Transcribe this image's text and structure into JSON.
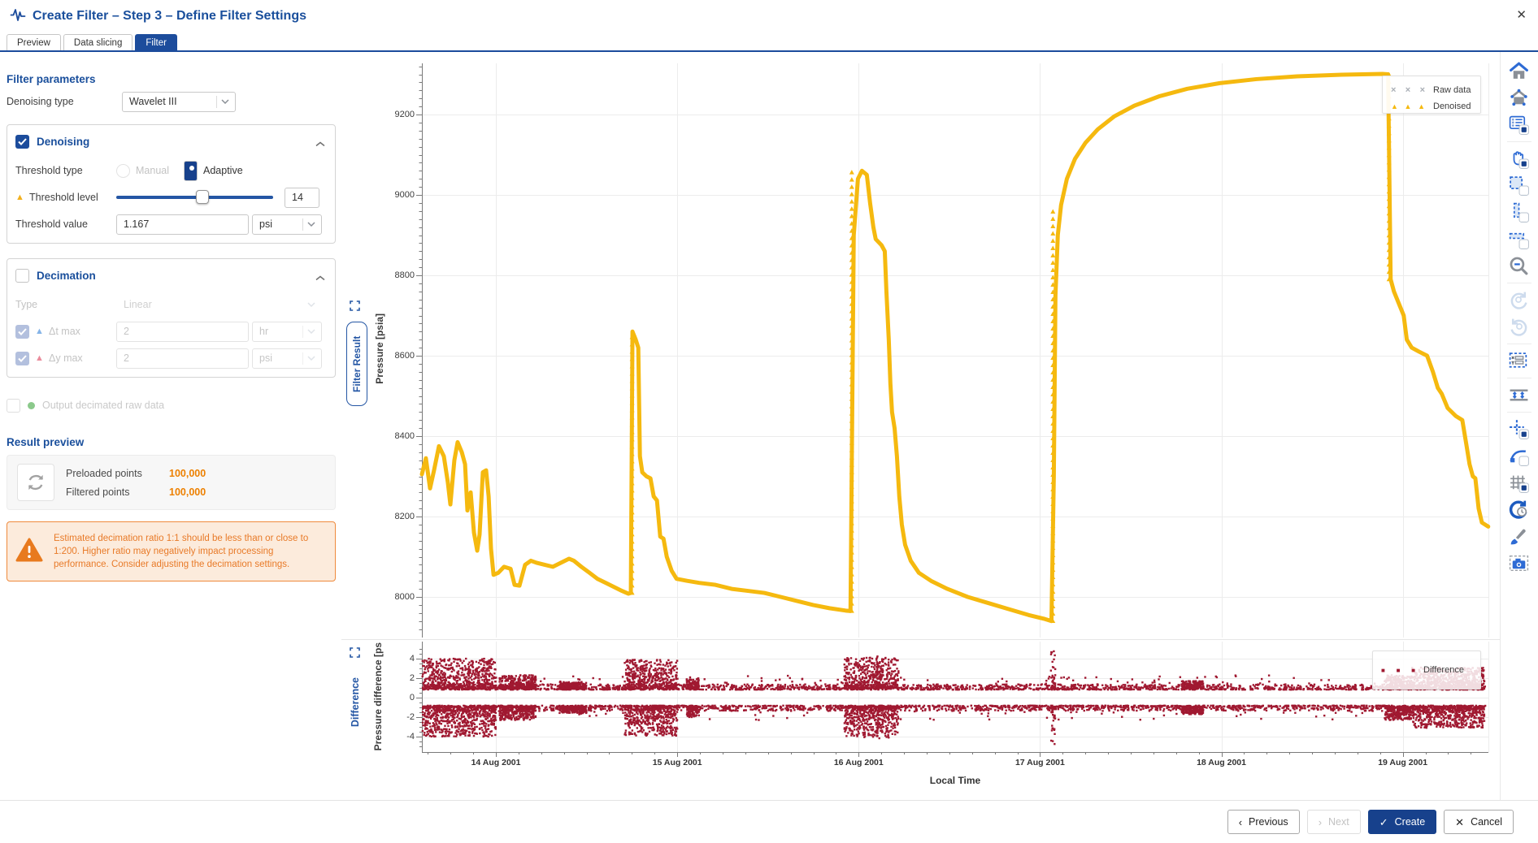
{
  "header": {
    "title": "Create Filter – Step 3 – Define Filter Settings",
    "close_glyph": "✕"
  },
  "tabs": [
    {
      "label": "Preview",
      "active": false
    },
    {
      "label": "Data slicing",
      "active": false
    },
    {
      "label": "Filter",
      "active": true
    }
  ],
  "filter_panel": {
    "heading": "Filter parameters",
    "denoising_type": {
      "label": "Denoising type",
      "value": "Wavelet III"
    },
    "denoising": {
      "title": "Denoising",
      "checked": true,
      "threshold_type": {
        "label": "Threshold type",
        "options": [
          {
            "label": "Manual",
            "selected": false,
            "disabled": true
          },
          {
            "label": "Adaptive",
            "selected": true,
            "disabled": false
          }
        ]
      },
      "threshold_level": {
        "label": "Threshold level",
        "value": "14",
        "slider_pos": 0.55,
        "marker_glyph": "▲",
        "marker_color": "#f2b01e"
      },
      "threshold_value": {
        "label": "Threshold value",
        "value": "1.167",
        "unit": "psi"
      }
    },
    "decimation": {
      "title": "Decimation",
      "checked": false,
      "type": {
        "label": "Type",
        "value": "Linear"
      },
      "dt_max": {
        "label": "Δt max",
        "value": "2",
        "unit": "hr",
        "checked": true,
        "marker_glyph": "▲",
        "marker_color": "#85b4e8"
      },
      "dy_max": {
        "label": "Δy max",
        "value": "2",
        "unit": "psi",
        "checked": true,
        "marker_glyph": "▲",
        "marker_color": "#ea8c9c"
      }
    },
    "output_decimated": {
      "label": "Output decimated raw data",
      "checked": false,
      "dot_color": "#8bc98b"
    },
    "result_preview": {
      "heading": "Result preview",
      "rows": [
        {
          "label": "Preloaded points",
          "value": "100,000"
        },
        {
          "label": "Filtered points",
          "value": "100,000"
        }
      ],
      "value_color": "#ed8000"
    },
    "warning": {
      "text": "Estimated decimation ratio 1:1 should be less than or close to 1:200. Higher ratio may negatively impact processing performance. Consider adjusting the decimation settings."
    }
  },
  "chart_data": {
    "type": "line",
    "x": {
      "label": "Local Time",
      "domain": [
        0.092,
        5.972
      ],
      "gridlines": [
        0.5,
        1.5,
        2.5,
        3.5,
        4.5,
        5.5
      ],
      "ticks": [
        {
          "pos": 0.5,
          "label": "14 Aug 2001"
        },
        {
          "pos": 1.5,
          "label": "15 Aug 2001"
        },
        {
          "pos": 2.5,
          "label": "16 Aug 2001"
        },
        {
          "pos": 3.5,
          "label": "17 Aug 2001"
        },
        {
          "pos": 4.5,
          "label": "18 Aug 2001"
        },
        {
          "pos": 5.5,
          "label": "19 Aug 2001"
        }
      ]
    },
    "panels": [
      {
        "id": "filter_result",
        "badge": "Filter Result",
        "ylabel": "Pressure [psia]",
        "ylim": [
          7895,
          9325
        ],
        "yticks": [
          9200,
          9000,
          8800,
          8600,
          8400,
          8200,
          8000
        ],
        "legend": [
          {
            "label": "Raw data",
            "marker_glyph": "×",
            "color": "#a9aeb5"
          },
          {
            "label": "Denoised",
            "marker_glyph": "▲",
            "color": "#f5b90f"
          }
        ],
        "series": [
          {
            "name": "Denoised",
            "color": "#f5b90f",
            "points": [
              [
                0.092,
                8305
              ],
              [
                0.114,
                8345
              ],
              [
                0.137,
                8270
              ],
              [
                0.159,
                8315
              ],
              [
                0.186,
                8375
              ],
              [
                0.213,
                8350
              ],
              [
                0.235,
                8285
              ],
              [
                0.249,
                8230
              ],
              [
                0.271,
                8340
              ],
              [
                0.289,
                8385
              ],
              [
                0.312,
                8360
              ],
              [
                0.33,
                8330
              ],
              [
                0.343,
                8215
              ],
              [
                0.361,
                8260
              ],
              [
                0.379,
                8160
              ],
              [
                0.397,
                8115
              ],
              [
                0.41,
                8155
              ],
              [
                0.428,
                8310
              ],
              [
                0.446,
                8315
              ],
              [
                0.46,
                8250
              ],
              [
                0.473,
                8120
              ],
              [
                0.487,
                8055
              ],
              [
                0.513,
                8060
              ],
              [
                0.545,
                8075
              ],
              [
                0.581,
                8070
              ],
              [
                0.603,
                8030
              ],
              [
                0.63,
                8028
              ],
              [
                0.661,
                8080
              ],
              [
                0.693,
                8090
              ],
              [
                0.724,
                8085
              ],
              [
                0.769,
                8080
              ],
              [
                0.814,
                8075
              ],
              [
                0.859,
                8085
              ],
              [
                0.903,
                8095
              ],
              [
                0.93,
                8090
              ],
              [
                0.971,
                8075
              ],
              [
                1.016,
                8060
              ],
              [
                1.06,
                8045
              ],
              [
                1.105,
                8035
              ],
              [
                1.15,
                8025
              ],
              [
                1.195,
                8015
              ],
              [
                1.231,
                8008
              ],
              [
                1.244,
                8010
              ],
              [
                1.253,
                8660
              ],
              [
                1.271,
                8640
              ],
              [
                1.285,
                8620
              ],
              [
                1.294,
                8350
              ],
              [
                1.307,
                8310
              ],
              [
                1.33,
                8300
              ],
              [
                1.352,
                8295
              ],
              [
                1.37,
                8250
              ],
              [
                1.388,
                8240
              ],
              [
                1.406,
                8150
              ],
              [
                1.424,
                8145
              ],
              [
                1.442,
                8100
              ],
              [
                1.469,
                8065
              ],
              [
                1.496,
                8045
              ],
              [
                1.554,
                8040
              ],
              [
                1.621,
                8035
              ],
              [
                1.711,
                8030
              ],
              [
                1.8,
                8020
              ],
              [
                1.89,
                8015
              ],
              [
                1.98,
                8010
              ],
              [
                2.07,
                8000
              ],
              [
                2.159,
                7990
              ],
              [
                2.249,
                7980
              ],
              [
                2.339,
                7972
              ],
              [
                2.428,
                7966
              ],
              [
                2.455,
                7965
              ],
              [
                2.473,
                8900
              ],
              [
                2.496,
                9040
              ],
              [
                2.518,
                9060
              ],
              [
                2.545,
                9050
              ],
              [
                2.563,
                8980
              ],
              [
                2.581,
                8920
              ],
              [
                2.594,
                8890
              ],
              [
                2.626,
                8875
              ],
              [
                2.644,
                8860
              ],
              [
                2.653,
                8760
              ],
              [
                2.666,
                8640
              ],
              [
                2.675,
                8530
              ],
              [
                2.684,
                8460
              ],
              [
                2.698,
                8420
              ],
              [
                2.711,
                8350
              ],
              [
                2.724,
                8250
              ],
              [
                2.738,
                8180
              ],
              [
                2.756,
                8130
              ],
              [
                2.787,
                8090
              ],
              [
                2.832,
                8060
              ],
              [
                2.899,
                8040
              ],
              [
                2.989,
                8020
              ],
              [
                3.101,
                8000
              ],
              [
                3.213,
                7985
              ],
              [
                3.325,
                7970
              ],
              [
                3.437,
                7955
              ],
              [
                3.527,
                7945
              ],
              [
                3.563,
                7940
              ],
              [
                3.576,
                8300
              ],
              [
                3.585,
                8750
              ],
              [
                3.598,
                8900
              ],
              [
                3.616,
                8975
              ],
              [
                3.648,
                9040
              ],
              [
                3.693,
                9090
              ],
              [
                3.751,
                9130
              ],
              [
                3.818,
                9163
              ],
              [
                3.908,
                9195
              ],
              [
                4.02,
                9222
              ],
              [
                4.155,
                9245
              ],
              [
                4.312,
                9264
              ],
              [
                4.491,
                9278
              ],
              [
                4.693,
                9288
              ],
              [
                4.917,
                9295
              ],
              [
                5.164,
                9299
              ],
              [
                5.388,
                9301
              ],
              [
                5.419,
                9300
              ],
              [
                5.433,
                8790
              ],
              [
                5.451,
                8760
              ],
              [
                5.478,
                8730
              ],
              [
                5.505,
                8700
              ],
              [
                5.522,
                8640
              ],
              [
                5.549,
                8620
              ],
              [
                5.59,
                8610
              ],
              [
                5.634,
                8600
              ],
              [
                5.666,
                8560
              ],
              [
                5.693,
                8520
              ],
              [
                5.715,
                8505
              ],
              [
                5.747,
                8470
              ],
              [
                5.792,
                8450
              ],
              [
                5.828,
                8440
              ],
              [
                5.85,
                8380
              ],
              [
                5.868,
                8330
              ],
              [
                5.886,
                8300
              ],
              [
                5.9,
                8295
              ],
              [
                5.918,
                8220
              ],
              [
                5.936,
                8185
              ],
              [
                5.971,
                8175
              ]
            ]
          }
        ],
        "columns": [
          {
            "x": 1.251,
            "y0": 8010,
            "y1": 8660
          },
          {
            "x": 2.462,
            "y0": 7965,
            "y1": 9060
          },
          {
            "x": 3.571,
            "y0": 7940,
            "y1": 8975
          },
          {
            "x": 5.424,
            "y0": 8790,
            "y1": 9300
          }
        ]
      },
      {
        "id": "difference",
        "badge": "Difference",
        "ylabel": "Pressure difference [ps",
        "ylim": [
          -5.6,
          5.6
        ],
        "yticks": [
          4,
          2,
          0,
          -2,
          -4
        ],
        "legend": [
          {
            "label": "Difference",
            "marker_glyph": "■",
            "color": "#a01931"
          }
        ],
        "scatter": {
          "color": "#a01931",
          "seed": 42,
          "base": {
            "range": [
              0.095,
              5.955
            ],
            "n": 1900,
            "offset": 0.82,
            "jitter": 0.55
          },
          "mid": {
            "n": 280,
            "max": 2.3
          },
          "clusters": [
            [
              0.095,
              0.5,
              4.0
            ],
            [
              0.52,
              0.72,
              2.3
            ],
            [
              0.85,
              1.0,
              1.6
            ],
            [
              1.21,
              1.5,
              3.9
            ],
            [
              1.55,
              1.62,
              2.0
            ],
            [
              2.42,
              2.72,
              4.1
            ],
            [
              2.595,
              2.615,
              4.3
            ],
            [
              3.56,
              3.584,
              4.8
            ],
            [
              4.28,
              4.4,
              1.7
            ],
            [
              5.4,
              5.55,
              2.3
            ],
            [
              5.55,
              5.95,
              3.1
            ]
          ]
        }
      }
    ]
  },
  "toolbar": {
    "icons": [
      {
        "name": "home-icon"
      },
      {
        "name": "fit-view-icon"
      },
      {
        "name": "plot-settings-icon"
      },
      {
        "name": "pan-icon"
      },
      {
        "name": "zoom-box-icon"
      },
      {
        "name": "zoom-y-icon"
      },
      {
        "name": "zoom-x-icon"
      },
      {
        "name": "zoom-out-icon"
      },
      {
        "name": "undo-zoom-icon",
        "disabled": true
      },
      {
        "name": "redo-zoom-icon",
        "disabled": true
      },
      {
        "name": "coordinates-icon"
      },
      {
        "name": "scale-y-icon"
      },
      {
        "name": "crosshair-icon"
      },
      {
        "name": "tangent-icon"
      },
      {
        "name": "grid-icon"
      },
      {
        "name": "time-sync-icon"
      },
      {
        "name": "style-brush-icon"
      },
      {
        "name": "snapshot-icon"
      }
    ],
    "divider_after": [
      2,
      7,
      9,
      10,
      11
    ]
  },
  "footer": {
    "buttons": [
      {
        "label": "Previous",
        "glyph": "‹",
        "style": "normal"
      },
      {
        "label": "Next",
        "glyph": "›",
        "style": "disabled"
      },
      {
        "label": "Create",
        "glyph": "✓",
        "style": "primary"
      },
      {
        "label": "Cancel",
        "glyph": "✕",
        "style": "normal"
      }
    ]
  }
}
